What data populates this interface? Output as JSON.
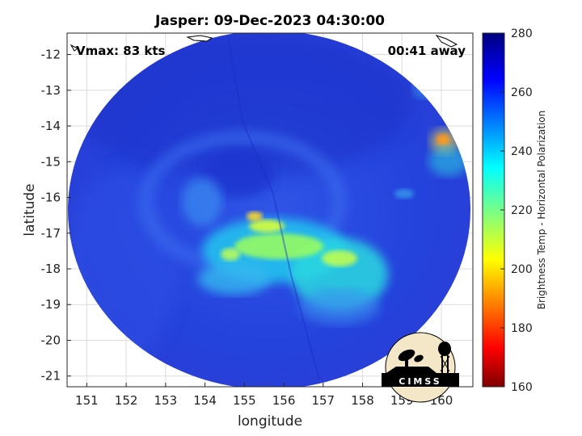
{
  "title": "Jasper: 09-Dec-2023 04:30:00",
  "annotations": {
    "vmax": "Vmax: 83 kts",
    "time_away": "00:41 away"
  },
  "axes": {
    "xlabel": "longitude",
    "ylabel": "latitude",
    "xlim": [
      150.5,
      160.8
    ],
    "ylim": [
      -21.3,
      -11.4
    ],
    "x_ticks": [
      "151",
      "152",
      "153",
      "154",
      "155",
      "156",
      "157",
      "158",
      "159",
      "160"
    ],
    "y_ticks": [
      "-12",
      "-13",
      "-14",
      "-15",
      "-16",
      "-17",
      "-18",
      "-19",
      "-20",
      "-21"
    ]
  },
  "colorbar": {
    "label": "Brightness Temp - Horizontal Polarization",
    "range": [
      160,
      280
    ],
    "ticks": [
      "280",
      "260",
      "240",
      "220",
      "200",
      "180",
      "160"
    ],
    "colormap": "jet"
  },
  "logo": {
    "text": "CIMSS"
  },
  "colors": {
    "background_swath": "#1e3cd8",
    "cold_core": "#c8ff3a",
    "warm_band": "#25d6e6"
  }
}
